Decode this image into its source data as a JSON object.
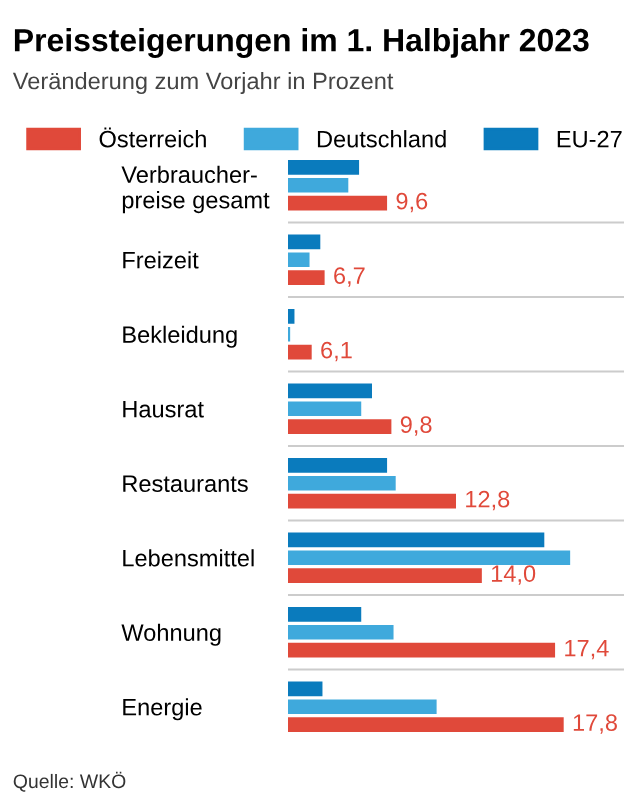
{
  "chart_data": {
    "type": "bar",
    "orientation": "horizontal",
    "title": "Preissteigerungen im 1. Halbjahr 2023",
    "subtitle": "Veränderung zum Vorjahr in Prozent",
    "categories": [
      "Verbraucher-\npreise gesamt",
      "Freizeit",
      "Bekleidung",
      "Hausrat",
      "Restaurants",
      "Lebensmittel",
      "Wohnung",
      "Energie"
    ],
    "series": [
      {
        "name": "Österreich",
        "color": "#e0493a",
        "values": [
          9.6,
          6.7,
          6.1,
          9.8,
          12.8,
          14.0,
          17.4,
          17.8
        ],
        "value_labels": [
          "9,6",
          "6,7",
          "6,1",
          "9,8",
          "12,8",
          "14,0",
          "17,4",
          "17,8"
        ]
      },
      {
        "name": "Deutschland",
        "color": "#3fa9dc",
        "values": [
          7.8,
          6.0,
          5.1,
          8.4,
          10.0,
          18.1,
          9.9,
          11.9
        ]
      },
      {
        "name": "EU-27",
        "color": "#0a7bbd",
        "values": [
          8.3,
          6.5,
          5.3,
          8.9,
          9.6,
          16.9,
          8.4,
          6.6
        ]
      }
    ],
    "xlim": [
      5.0,
      20.6
    ],
    "tick_labels": "y",
    "grid": false,
    "legend": "top",
    "annotations": [
      "Quelle: WKÖ"
    ]
  }
}
